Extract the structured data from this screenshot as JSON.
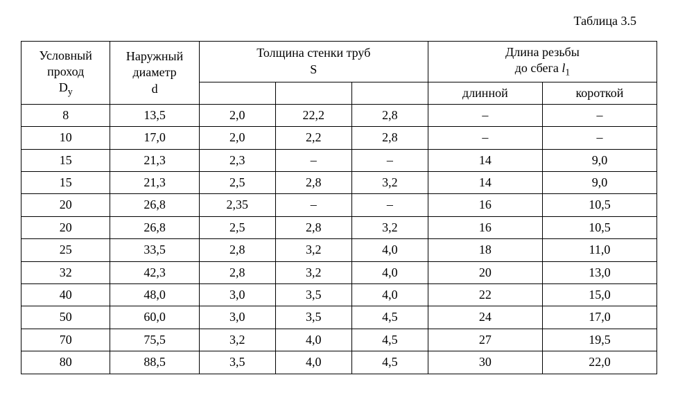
{
  "caption": "Таблица  3.5",
  "headers": {
    "col1_line1": "Условный",
    "col1_line2": "проход",
    "col1_line3_pre": "D",
    "col1_line3_sub": "у",
    "col2_line1": "Наружный",
    "col2_line2": "диаметр",
    "col2_line3": "d",
    "col345_line1": "Толщина стенки труб",
    "col345_line2": "S",
    "col67_line1": "Длина резьбы",
    "col67_line2_pre": "до сбега ",
    "col67_line2_ital": "l",
    "col67_line2_sub": "1",
    "col6_sub": "длинной",
    "col7_sub": "короткой"
  },
  "rows": [
    {
      "c1": "8",
      "c2": "13,5",
      "c3": "2,0",
      "c4": "22,2",
      "c5": "2,8",
      "c6": "–",
      "c7": "–"
    },
    {
      "c1": "10",
      "c2": "17,0",
      "c3": "2,0",
      "c4": "2,2",
      "c5": "2,8",
      "c6": "–",
      "c7": "–"
    },
    {
      "c1": "15",
      "c2": "21,3",
      "c3": "2,3",
      "c4": "–",
      "c5": "–",
      "c6": "14",
      "c7": "9,0"
    },
    {
      "c1": "15",
      "c2": "21,3",
      "c3": "2,5",
      "c4": "2,8",
      "c5": "3,2",
      "c6": "14",
      "c7": "9,0"
    },
    {
      "c1": "20",
      "c2": "26,8",
      "c3": "2,35",
      "c4": "–",
      "c5": "–",
      "c6": "16",
      "c7": "10,5"
    },
    {
      "c1": "20",
      "c2": "26,8",
      "c3": "2,5",
      "c4": "2,8",
      "c5": "3,2",
      "c6": "16",
      "c7": "10,5"
    },
    {
      "c1": "25",
      "c2": "33,5",
      "c3": "2,8",
      "c4": "3,2",
      "c5": "4,0",
      "c6": "18",
      "c7": "11,0"
    },
    {
      "c1": "32",
      "c2": "42,3",
      "c3": "2,8",
      "c4": "3,2",
      "c5": "4,0",
      "c6": "20",
      "c7": "13,0"
    },
    {
      "c1": "40",
      "c2": "48,0",
      "c3": "3,0",
      "c4": "3,5",
      "c5": "4,0",
      "c6": "22",
      "c7": "15,0"
    },
    {
      "c1": "50",
      "c2": "60,0",
      "c3": "3,0",
      "c4": "3,5",
      "c5": "4,5",
      "c6": "24",
      "c7": "17,0"
    },
    {
      "c1": "70",
      "c2": "75,5",
      "c3": "3,2",
      "c4": "4,0",
      "c5": "4,5",
      "c6": "27",
      "c7": "19,5"
    },
    {
      "c1": "80",
      "c2": "88,5",
      "c3": "3,5",
      "c4": "4,0",
      "c5": "4,5",
      "c6": "30",
      "c7": "22,0"
    }
  ],
  "style": {
    "background_color": "#ffffff",
    "border_color": "#000000",
    "font_family": "Times New Roman",
    "font_size_pt": 14,
    "text_color": "#000000"
  }
}
